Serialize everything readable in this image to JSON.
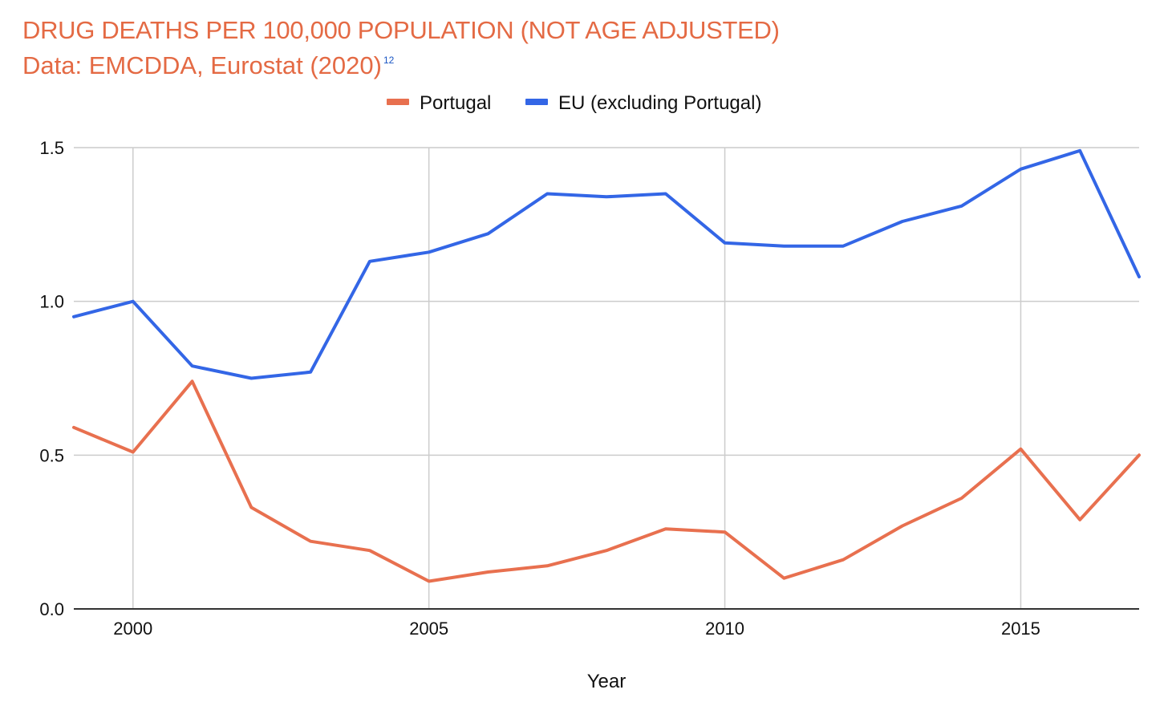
{
  "chart_data": {
    "type": "line",
    "title": "DRUG DEATHS PER 100,000 POPULATION (NOT AGE ADJUSTED)",
    "subtitle": "Data: EMCDDA, Eurostat (2020)",
    "subtitle_footnote": "12",
    "xlabel": "Year",
    "ylabel": "",
    "x": [
      1999,
      2000,
      2001,
      2002,
      2003,
      2004,
      2005,
      2006,
      2007,
      2008,
      2009,
      2010,
      2011,
      2012,
      2013,
      2014,
      2015,
      2016,
      2017
    ],
    "xlim": [
      1999,
      2017
    ],
    "ylim": [
      0,
      1.5
    ],
    "x_ticks": [
      2000,
      2005,
      2010,
      2015
    ],
    "x_tick_labels": [
      "2000",
      "2005",
      "2010",
      "2015"
    ],
    "y_ticks": [
      0,
      0.5,
      1.0,
      1.5
    ],
    "y_tick_labels": [
      "0.0",
      "0.5",
      "1.0",
      "1.5"
    ],
    "grid": true,
    "legend_position": "top-center",
    "series": [
      {
        "name": "Portugal",
        "color": "#e8704f",
        "values": [
          0.59,
          0.51,
          0.74,
          0.33,
          0.22,
          0.19,
          0.09,
          0.12,
          0.14,
          0.19,
          0.26,
          0.25,
          0.1,
          0.16,
          0.27,
          0.36,
          0.52,
          0.29,
          0.5
        ]
      },
      {
        "name": "EU (excluding Portugal)",
        "color": "#3366e6",
        "values": [
          0.95,
          1.0,
          0.79,
          0.75,
          0.77,
          1.13,
          1.16,
          1.22,
          1.35,
          1.34,
          1.35,
          1.19,
          1.18,
          1.18,
          1.26,
          1.31,
          1.43,
          1.49,
          1.08
        ]
      }
    ]
  }
}
